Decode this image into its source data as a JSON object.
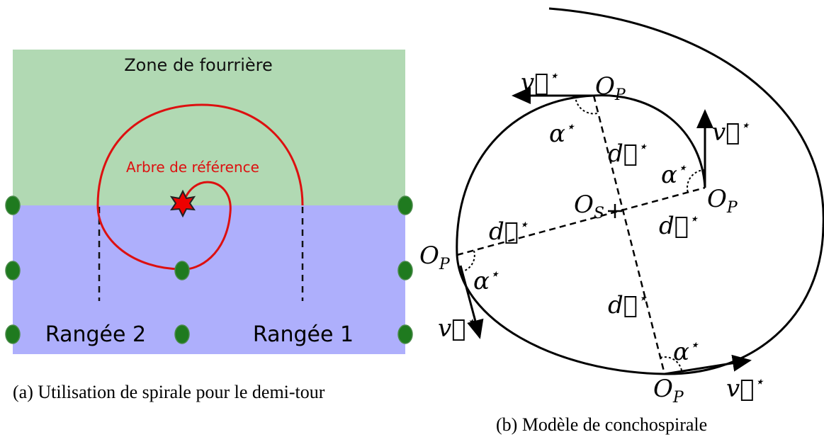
{
  "panel_a": {
    "zone_label": "Zone de fourrière",
    "tree_label": "Arbre de référence",
    "row_labels": [
      "Rangée 2",
      "Rangée 1"
    ],
    "caption": "(a) Utilisation de spirale pour le demi-tour"
  },
  "panel_b": {
    "caption": "(b) Modèle de conchospirale",
    "center": {
      "main": "O",
      "sub": "S"
    },
    "origins": [
      {
        "main": "O",
        "sub": "P"
      },
      {
        "main": "O",
        "sub": "P"
      },
      {
        "main": "O",
        "sub": "P"
      },
      {
        "main": "O",
        "sub": "P"
      }
    ],
    "velocities": [
      {
        "main": "v⃗",
        "sup": "⋆"
      },
      {
        "main": "v⃗",
        "sup": "⋆"
      },
      {
        "main": "v⃗",
        "sup": "⋆"
      },
      {
        "main": "v⃗",
        "sup": "⋆"
      }
    ],
    "distances": [
      {
        "main": "d⃗",
        "sup": "⋆"
      },
      {
        "main": "d⃗",
        "sup": "⋆"
      },
      {
        "main": "d⃗",
        "sup": "⋆"
      },
      {
        "main": "d⃗",
        "sup": "⋆"
      }
    ],
    "angles": [
      {
        "main": "α",
        "sup": "⋆"
      },
      {
        "main": "α",
        "sup": "⋆"
      },
      {
        "main": "α",
        "sup": "⋆"
      },
      {
        "main": "α",
        "sup": "⋆"
      }
    ]
  }
}
